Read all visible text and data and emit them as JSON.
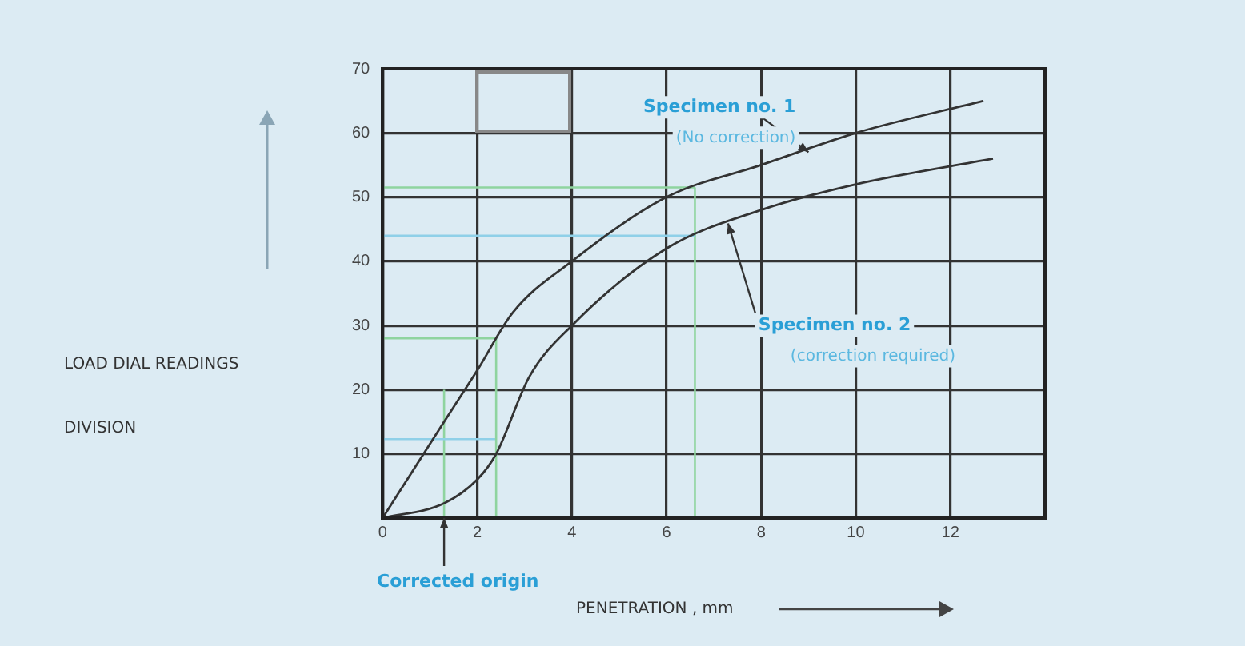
{
  "chart_data": {
    "type": "line",
    "xlabel": "PENETRATION , mm",
    "ylabel": "LOAD DIAL READINGS\nDIVISION",
    "xlim": [
      0,
      14
    ],
    "xticks": [
      0,
      2,
      4,
      6,
      8,
      10,
      12
    ],
    "ylim": [
      0,
      70
    ],
    "yticks": [
      {
        "value": 0,
        "label": null
      },
      10,
      20,
      30,
      40,
      50,
      60,
      70
    ],
    "grid": true,
    "marker": "none",
    "line_style": "solid",
    "series": [
      {
        "color": "#333333",
        "x": [
          0,
          1.3,
          2.0,
          2.75,
          4.0,
          6.0,
          8.0,
          10.0,
          12.7
        ],
        "values": [
          0,
          15,
          23,
          32,
          40,
          50,
          55,
          60,
          65
        ]
      },
      {
        "color": "#333333",
        "x": [
          0,
          1.3,
          2.0,
          2.4,
          3.1,
          4.0,
          6.0,
          8.0,
          10.0,
          12.9
        ],
        "values": [
          0,
          2.3,
          6,
          10,
          22,
          30,
          42,
          48,
          52,
          56
        ]
      },
      {
        "color": "#8fd0e8",
        "x": [
          0,
          6.6
        ],
        "values": [
          44,
          44
        ]
      },
      {
        "color": "#8fd49f",
        "x": [
          0,
          6.6
        ],
        "values": [
          51.5,
          51.5
        ]
      },
      {
        "color": "#8fd49f",
        "x": [
          6.6,
          6.6
        ],
        "values": [
          0,
          51.5
        ]
      },
      {
        "color": "#8fd49f",
        "x": [
          0,
          2.4
        ],
        "values": [
          28,
          28
        ]
      },
      {
        "color": "#8fd49f",
        "x": [
          2.4,
          2.4
        ],
        "values": [
          0,
          28
        ]
      },
      {
        "color": "#8fd0e8",
        "x": [
          0,
          2.4
        ],
        "values": [
          12.3,
          12.3
        ]
      },
      {
        "color": "#8fd49f",
        "x": [
          1.3,
          1.3
        ],
        "values": [
          0,
          20
        ]
      }
    ],
    "annotations": [
      {
        "text": "Specimen no. 1\n(No correction)",
        "x": 9.0,
        "y": 57
      },
      {
        "text": "Specimen no. 2\n(correction required)",
        "x": 7.3,
        "y": 45.9
      },
      {
        "text": "Corrected origin",
        "x": 1.3,
        "y": 0
      }
    ]
  }
}
